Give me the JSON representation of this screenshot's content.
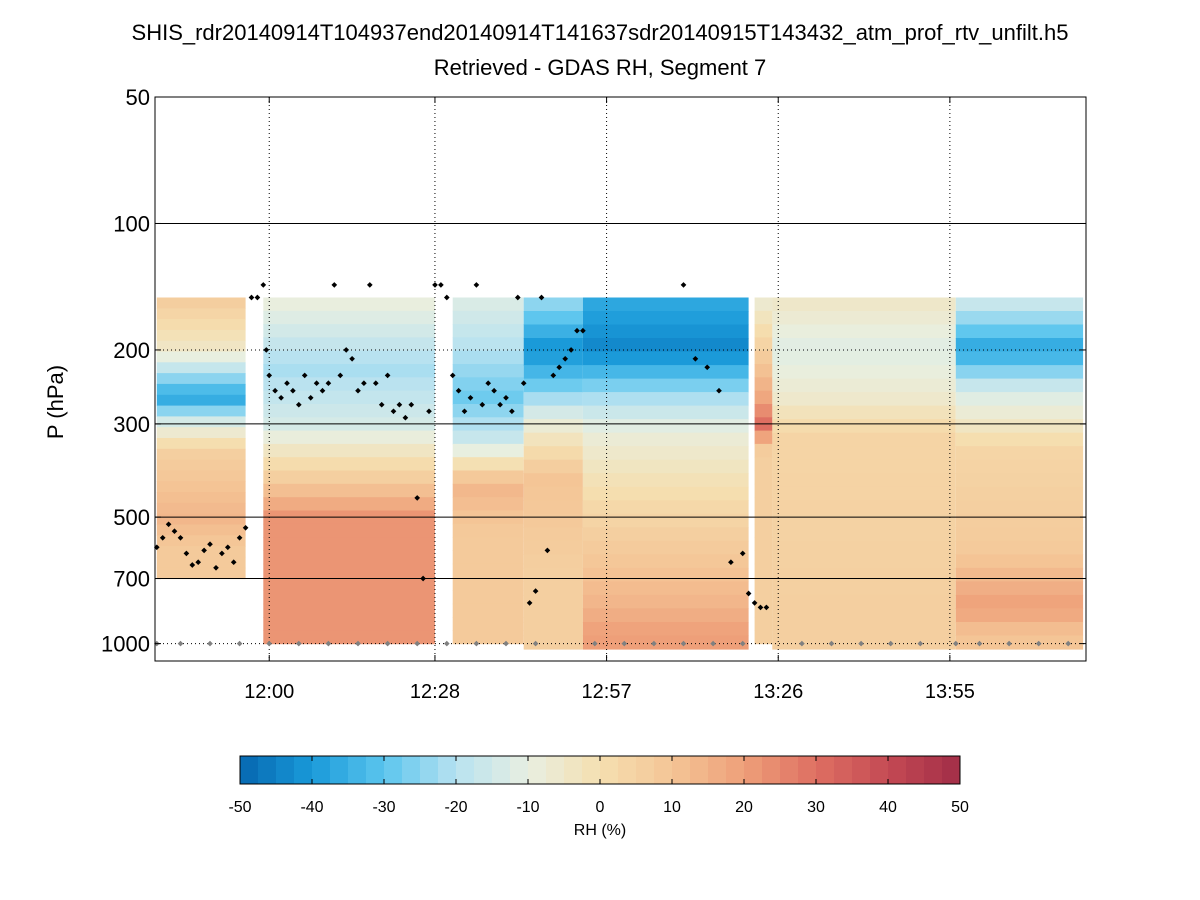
{
  "chart_data": {
    "type": "heatmap",
    "title": "SHIS_rdr20140914T104937end20140914T141637sdr20140915T143432_atm_prof_rtv_unfilt.h5",
    "subtitle": "Retrieved - GDAS RH, Segment 7",
    "xlabel": "",
    "ylabel": "P (hPa)",
    "y_scale": "log",
    "y_reversed": true,
    "ylim": [
      50,
      1100
    ],
    "xlim_minutes": [
      700.7,
      858
    ],
    "y_ticks": [
      50,
      100,
      200,
      300,
      500,
      700,
      1000
    ],
    "y_tick_labels": [
      "50",
      "100",
      "200",
      "300",
      "500",
      "700",
      "1000"
    ],
    "x_ticks_minutes": [
      720,
      748,
      777,
      806,
      835
    ],
    "x_tick_labels": [
      "12:00",
      "12:28",
      "12:57",
      "13:26",
      "13:55"
    ],
    "data_top_pressure_hPa": 150,
    "colorbar": {
      "label": "RH (%)",
      "range": [
        -50,
        50
      ],
      "tick_values": [
        -50,
        -40,
        -30,
        -20,
        -10,
        0,
        10,
        20,
        30,
        40,
        50
      ],
      "tick_labels": [
        "-50",
        "-40",
        "-30",
        "-20",
        "-10",
        "0",
        "10",
        "20",
        "30",
        "40",
        "50"
      ],
      "colors": [
        "#0566b0",
        "#1a9ad9",
        "#5bc5ee",
        "#b8e2f0",
        "#e8efe1",
        "#f5dfb0",
        "#f4c596",
        "#ee9f79",
        "#de6f62",
        "#c44a54",
        "#a22d47"
      ]
    },
    "regions": [
      {
        "x0": 701,
        "x1": 716,
        "values": [
          {
            "p": 150,
            "v": 8
          },
          {
            "p": 200,
            "v": -5
          },
          {
            "p": 260,
            "v": -38
          },
          {
            "p": 300,
            "v": -12
          },
          {
            "p": 350,
            "v": 6
          },
          {
            "p": 500,
            "v": 14
          },
          {
            "p": 600,
            "v": 8
          }
        ],
        "p_bottom": 700
      },
      {
        "x0": 719,
        "x1": 748,
        "values": [
          {
            "p": 150,
            "v": -8
          },
          {
            "p": 220,
            "v": -22
          },
          {
            "p": 300,
            "v": -14
          },
          {
            "p": 400,
            "v": 6
          },
          {
            "p": 500,
            "v": 22
          }
        ],
        "p_bottom": 1000
      },
      {
        "x0": 751,
        "x1": 763,
        "values": [
          {
            "p": 150,
            "v": -12
          },
          {
            "p": 260,
            "v": -28
          },
          {
            "p": 330,
            "v": -16
          },
          {
            "p": 420,
            "v": 14
          },
          {
            "p": 550,
            "v": 8
          }
        ],
        "p_bottom": 1000
      },
      {
        "x0": 763,
        "x1": 773,
        "values": [
          {
            "p": 150,
            "v": -22
          },
          {
            "p": 200,
            "v": -42
          },
          {
            "p": 250,
            "v": -26
          },
          {
            "p": 300,
            "v": -8
          },
          {
            "p": 400,
            "v": 10
          },
          {
            "p": 700,
            "v": 6
          }
        ],
        "p_bottom": 1030
      },
      {
        "x0": 773,
        "x1": 801,
        "values": [
          {
            "p": 150,
            "v": -36
          },
          {
            "p": 200,
            "v": -44
          },
          {
            "p": 250,
            "v": -24
          },
          {
            "p": 320,
            "v": -8
          },
          {
            "p": 500,
            "v": 4
          },
          {
            "p": 800,
            "v": 14
          },
          {
            "p": 950,
            "v": 20
          }
        ],
        "p_bottom": 1030
      },
      {
        "x0": 802,
        "x1": 805,
        "values": [
          {
            "p": 150,
            "v": -8
          },
          {
            "p": 260,
            "v": 18
          },
          {
            "p": 300,
            "v": 30
          },
          {
            "p": 350,
            "v": 6
          }
        ],
        "p_bottom": 1000
      },
      {
        "x0": 805,
        "x1": 836,
        "values": [
          {
            "p": 150,
            "v": -4
          },
          {
            "p": 200,
            "v": -12
          },
          {
            "p": 260,
            "v": -6
          },
          {
            "p": 320,
            "v": 4
          },
          {
            "p": 800,
            "v": 6
          }
        ],
        "p_bottom": 1030
      },
      {
        "x0": 836,
        "x1": 857.5,
        "values": [
          {
            "p": 150,
            "v": -14
          },
          {
            "p": 200,
            "v": -38
          },
          {
            "p": 250,
            "v": -14
          },
          {
            "p": 350,
            "v": 4
          },
          {
            "p": 600,
            "v": 8
          },
          {
            "p": 820,
            "v": 20
          },
          {
            "p": 950,
            "v": 10
          }
        ],
        "p_bottom": 1030
      }
    ],
    "series": [
      {
        "name": "cloud-top markers",
        "color": "#000000",
        "x": [
          701,
          702,
          703,
          704,
          705,
          706,
          707,
          708,
          709,
          710,
          711,
          712,
          713,
          714,
          715,
          716,
          717,
          718,
          719,
          719.5,
          720,
          721,
          722,
          723,
          724,
          725,
          726,
          727,
          728,
          729,
          730,
          731,
          732,
          733,
          734,
          735,
          736,
          737,
          738,
          739,
          740,
          741,
          742,
          743,
          744,
          745,
          746,
          747,
          748,
          749,
          750,
          751,
          752,
          753,
          754,
          755,
          756,
          757,
          758,
          759,
          760,
          761,
          762,
          763,
          764,
          765,
          766,
          767,
          768,
          769,
          770,
          771,
          772,
          773,
          790,
          792,
          794,
          796,
          798,
          800,
          801,
          802,
          803,
          804
        ],
        "p": [
          590,
          560,
          520,
          540,
          560,
          610,
          650,
          640,
          600,
          580,
          660,
          610,
          590,
          640,
          560,
          530,
          150,
          150,
          140,
          200,
          230,
          250,
          260,
          240,
          250,
          270,
          230,
          260,
          240,
          250,
          240,
          140,
          230,
          200,
          210,
          250,
          240,
          140,
          240,
          270,
          230,
          280,
          270,
          290,
          270,
          450,
          700,
          280,
          140,
          140,
          150,
          230,
          250,
          280,
          260,
          140,
          270,
          240,
          250,
          270,
          260,
          280,
          150,
          240,
          800,
          750,
          150,
          600,
          230,
          220,
          210,
          200,
          180,
          180,
          140,
          210,
          220,
          250,
          640,
          610,
          760,
          800,
          820,
          820
        ]
      },
      {
        "name": "surface markers",
        "color": "#808080",
        "x": [
          701,
          705,
          710,
          715,
          720,
          725,
          730,
          735,
          740,
          745,
          750,
          755,
          760,
          765,
          775,
          780,
          785,
          790,
          795,
          800,
          810,
          815,
          820,
          825,
          830,
          836,
          840,
          845,
          850,
          855
        ],
        "p": [
          1000,
          1000,
          1000,
          1000,
          1000,
          1000,
          1000,
          1000,
          1000,
          1000,
          1000,
          1000,
          1000,
          1000,
          1000,
          1000,
          1000,
          1000,
          1000,
          1000,
          1000,
          1000,
          1000,
          1000,
          1000,
          1000,
          1000,
          1000,
          1000,
          1000
        ]
      }
    ]
  }
}
